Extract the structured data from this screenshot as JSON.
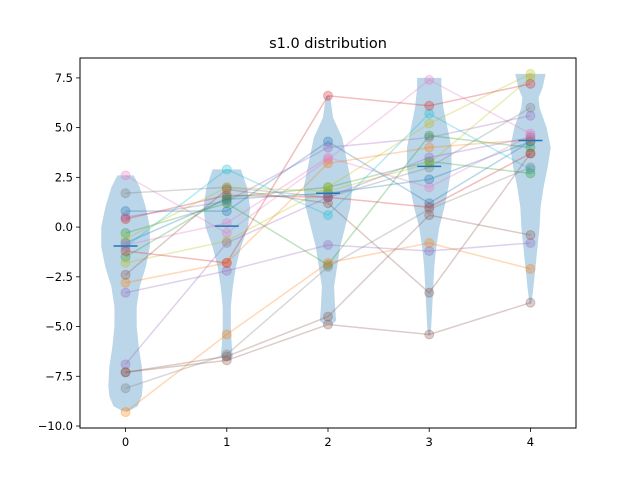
{
  "chart_data": {
    "type": "violin",
    "title": "s1.0 distribution",
    "xlabel": "",
    "ylabel": "",
    "categories": [
      0,
      1,
      2,
      3,
      4
    ],
    "xlim": [
      -0.45,
      4.45
    ],
    "ylim": [
      -10.1,
      8.5
    ],
    "xticks": [
      "0",
      "1",
      "2",
      "3",
      "4"
    ],
    "yticks": [
      "−10.0",
      "−7.5",
      "−5.0",
      "−2.5",
      "0.0",
      "2.5",
      "5.0",
      "7.5"
    ],
    "ytick_values": [
      -10,
      -7.5,
      -5,
      -2.5,
      0,
      2.5,
      5,
      7.5
    ],
    "grid": false,
    "violin_color": "#1f77b4",
    "medians": [
      -0.95,
      0.05,
      1.7,
      3.05,
      4.35
    ],
    "violins": [
      {
        "x": 0,
        "profile": [
          [
            -9.25,
            0.03
          ],
          [
            -9.0,
            0.12
          ],
          [
            -8.5,
            0.16
          ],
          [
            -8.0,
            0.17
          ],
          [
            -7.0,
            0.16
          ],
          [
            -6.0,
            0.13
          ],
          [
            -5.0,
            0.11
          ],
          [
            -4.0,
            0.11
          ],
          [
            -3.0,
            0.14
          ],
          [
            -2.0,
            0.2
          ],
          [
            -1.0,
            0.24
          ],
          [
            0.0,
            0.24
          ],
          [
            1.0,
            0.2
          ],
          [
            2.0,
            0.14
          ],
          [
            2.6,
            0.08
          ]
        ]
      },
      {
        "x": 1,
        "profile": [
          [
            -6.7,
            0.04
          ],
          [
            -6.5,
            0.06
          ],
          [
            -6.0,
            0.05
          ],
          [
            -5.0,
            0.04
          ],
          [
            -4.0,
            0.04
          ],
          [
            -3.0,
            0.06
          ],
          [
            -2.0,
            0.09
          ],
          [
            -1.0,
            0.14
          ],
          [
            0.0,
            0.21
          ],
          [
            1.0,
            0.23
          ],
          [
            2.0,
            0.2
          ],
          [
            2.9,
            0.14
          ]
        ]
      },
      {
        "x": 2,
        "profile": [
          [
            -4.9,
            0.04
          ],
          [
            -4.7,
            0.08
          ],
          [
            -4.0,
            0.07
          ],
          [
            -3.0,
            0.06
          ],
          [
            -2.0,
            0.09
          ],
          [
            -1.0,
            0.12
          ],
          [
            0.0,
            0.17
          ],
          [
            1.0,
            0.22
          ],
          [
            2.0,
            0.24
          ],
          [
            3.0,
            0.2
          ],
          [
            4.0,
            0.16
          ],
          [
            4.5,
            0.14
          ],
          [
            5.5,
            0.05
          ],
          [
            6.6,
            0.02
          ]
        ]
      },
      {
        "x": 3,
        "profile": [
          [
            -5.45,
            0.01
          ],
          [
            -5.0,
            0.02
          ],
          [
            -4.0,
            0.03
          ],
          [
            -3.0,
            0.04
          ],
          [
            -2.0,
            0.05
          ],
          [
            -1.0,
            0.07
          ],
          [
            0.0,
            0.1
          ],
          [
            1.0,
            0.15
          ],
          [
            2.0,
            0.19
          ],
          [
            3.0,
            0.22
          ],
          [
            4.0,
            0.22
          ],
          [
            5.0,
            0.18
          ],
          [
            6.0,
            0.14
          ],
          [
            7.0,
            0.12
          ],
          [
            7.5,
            0.12
          ]
        ]
      },
      {
        "x": 4,
        "profile": [
          [
            -3.85,
            0.01
          ],
          [
            -3.0,
            0.03
          ],
          [
            -2.0,
            0.05
          ],
          [
            -1.0,
            0.07
          ],
          [
            0.0,
            0.09
          ],
          [
            1.0,
            0.1
          ],
          [
            2.0,
            0.13
          ],
          [
            3.0,
            0.17
          ],
          [
            4.0,
            0.2
          ],
          [
            5.0,
            0.16
          ],
          [
            6.0,
            0.09
          ],
          [
            6.5,
            0.08
          ],
          [
            7.0,
            0.12
          ],
          [
            7.7,
            0.15
          ]
        ]
      }
    ],
    "series": [
      {
        "color": "#e377c2",
        "values": [
          2.6,
          -0.3,
          3.4,
          7.4,
          4.7
        ]
      },
      {
        "color": "#7f7f7f",
        "values": [
          1.7,
          2.0,
          1.5,
          3.0,
          6.0
        ]
      },
      {
        "color": "#1f77b4",
        "values": [
          0.8,
          0.8,
          4.3,
          1.2,
          4.3
        ]
      },
      {
        "color": "#9467bd",
        "values": [
          0.5,
          1.3,
          4.0,
          4.5,
          5.6
        ]
      },
      {
        "color": "#d62728",
        "values": [
          0.4,
          1.6,
          1.5,
          1.0,
          3.7
        ]
      },
      {
        "color": "#2ca02c",
        "values": [
          -0.3,
          1.2,
          -1.9,
          4.6,
          4.0
        ]
      },
      {
        "color": "#bcbd22",
        "values": [
          -0.6,
          2.0,
          1.8,
          3.2,
          7.5
        ]
      },
      {
        "color": "#1f77b4",
        "values": [
          -0.8,
          1.4,
          1.7,
          2.4,
          4.3
        ]
      },
      {
        "color": "#17becf",
        "values": [
          -1.0,
          2.9,
          0.6,
          5.7,
          2.9
        ]
      },
      {
        "color": "#2ca02c",
        "values": [
          -1.5,
          1.5,
          2.0,
          3.3,
          2.7
        ]
      },
      {
        "color": "#bcbd22",
        "values": [
          -1.8,
          -0.7,
          2.0,
          5.2,
          7.7
        ]
      },
      {
        "color": "#ff7f0e",
        "values": [
          -2.8,
          -1.8,
          3.2,
          4.0,
          4.4
        ]
      },
      {
        "color": "#9467bd",
        "values": [
          -3.3,
          -2.2,
          -0.9,
          -1.2,
          -0.8
        ]
      },
      {
        "color": "#e377c2",
        "values": [
          -0.9,
          0.2,
          3.5,
          2.0,
          4.6
        ]
      },
      {
        "color": "#9467bd",
        "values": [
          -6.9,
          -0.8,
          1.5,
          3.5,
          4.5
        ]
      },
      {
        "color": "#8c564b",
        "values": [
          -7.3,
          -6.5,
          -4.5,
          0.6,
          -0.4
        ]
      },
      {
        "color": "#7f7f7f",
        "values": [
          -8.1,
          -6.4,
          -2.0,
          0.9,
          3.0
        ]
      },
      {
        "color": "#ff7f0e",
        "values": [
          -9.3,
          -5.4,
          -1.8,
          -0.8,
          -2.1
        ]
      },
      {
        "color": "#8c564b",
        "values": [
          -7.3,
          -6.7,
          -4.9,
          -5.4,
          -3.8
        ]
      },
      {
        "color": "#8c564b",
        "values": [
          -2.4,
          1.9,
          1.2,
          -3.3,
          3.7
        ]
      },
      {
        "color": "#d62728",
        "values": [
          -1.2,
          -1.8,
          6.6,
          6.1,
          7.2
        ]
      }
    ]
  }
}
